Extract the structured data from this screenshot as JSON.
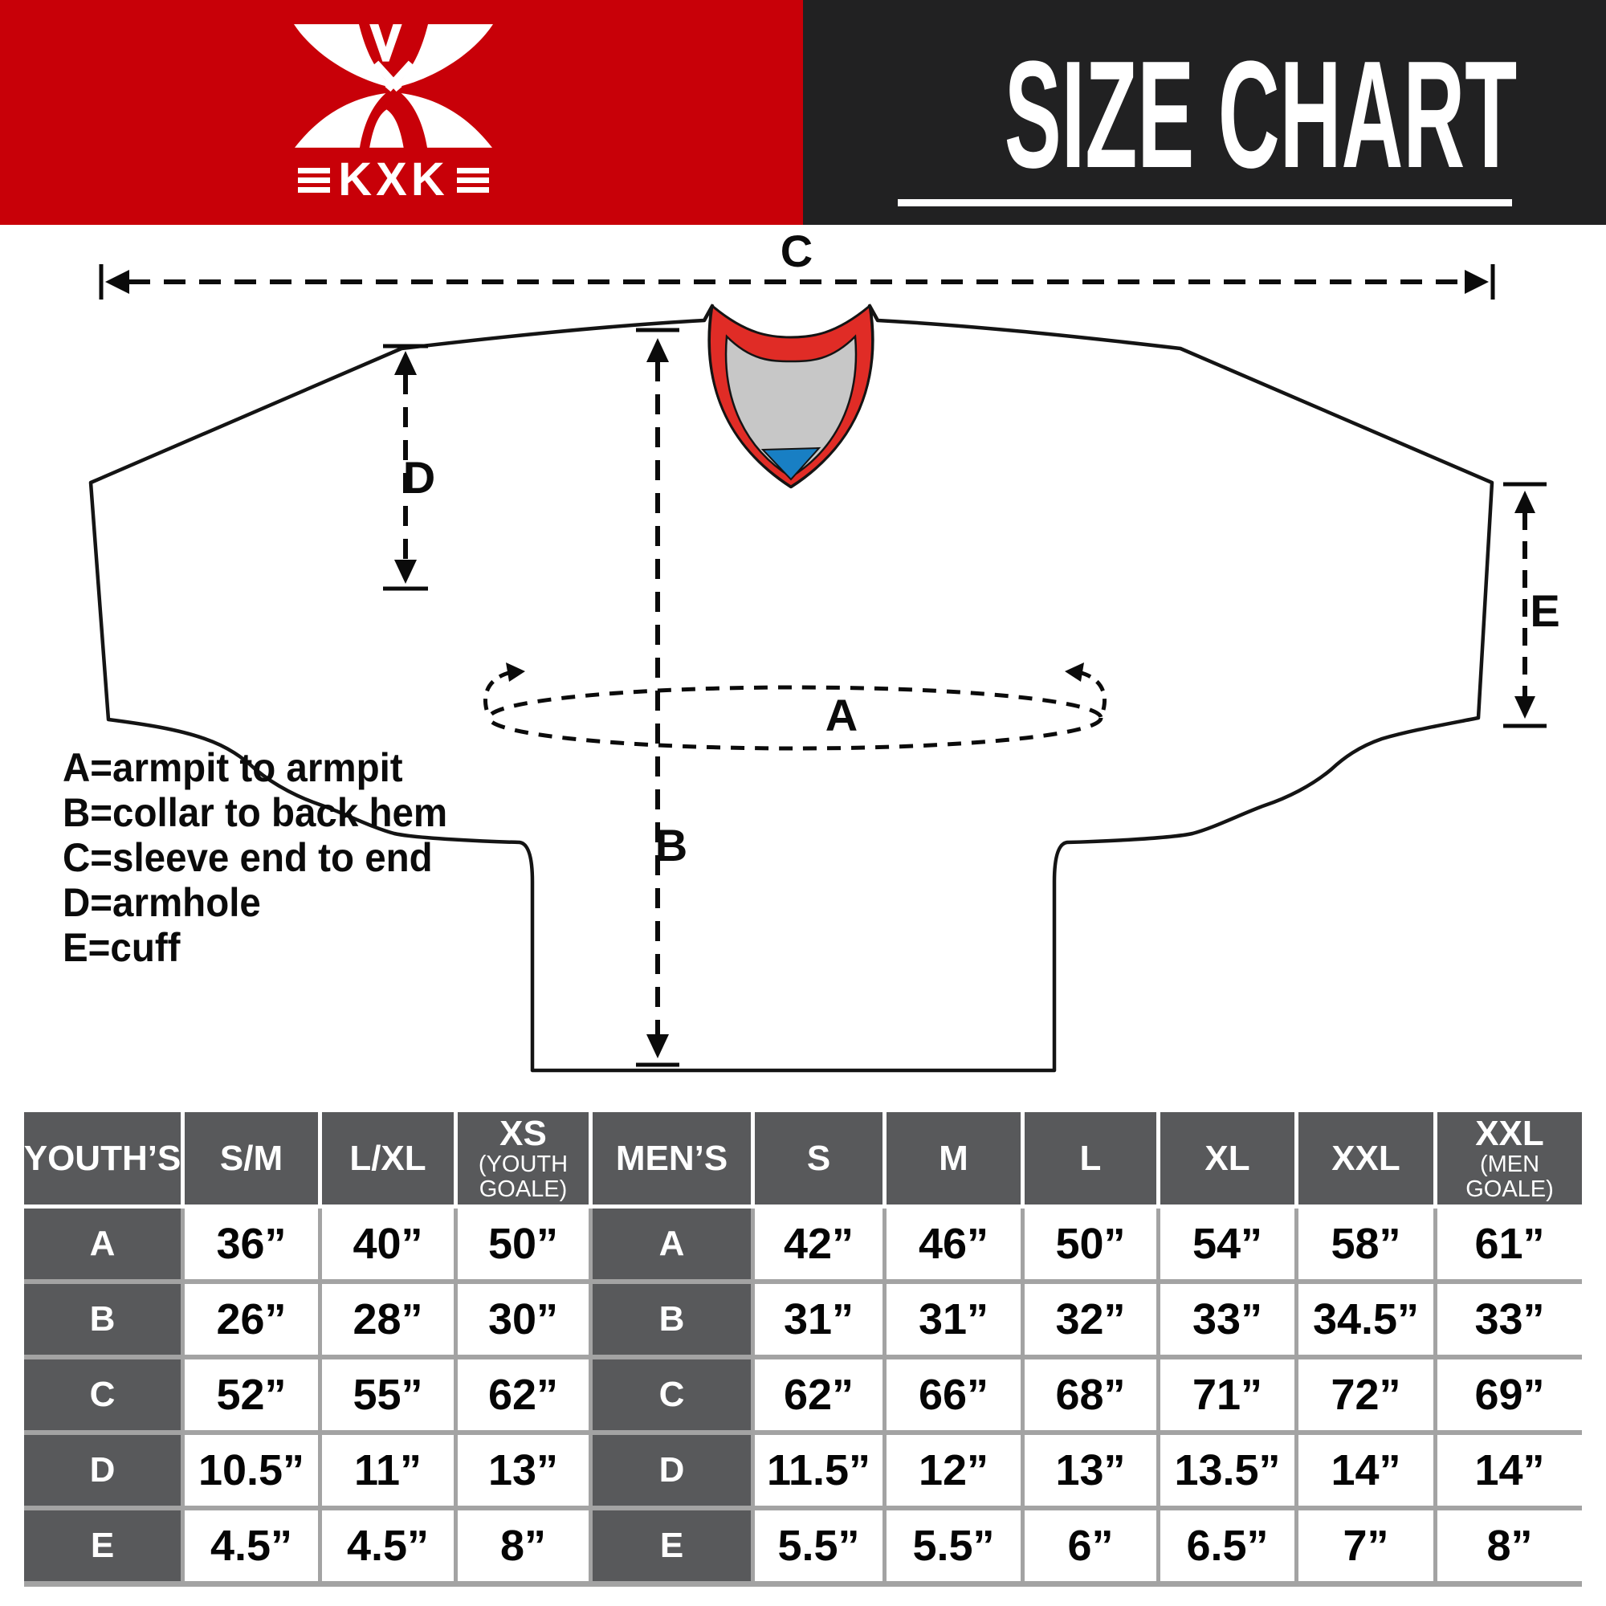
{
  "header": {
    "logo_text": "KXK",
    "title": "SIZE CHART",
    "colors": {
      "brand_red": "#c80008",
      "panel_dark": "#212122"
    }
  },
  "diagram": {
    "measure_labels": {
      "A": "A",
      "B": "B",
      "C": "C",
      "D": "D",
      "E": "E"
    },
    "legend": [
      "A=armpit to armpit",
      "B=collar to back hem",
      "C=sleeve end to end",
      "D=armhole",
      "E=cuff"
    ],
    "colors": {
      "collar_red": "#e02c26",
      "collar_gray": "#c7c7c7",
      "collar_blue": "#187fc4",
      "outline": "#141414"
    }
  },
  "size_table": {
    "columns": [
      {
        "label": "YOUTH’S",
        "sub": "",
        "type": "label"
      },
      {
        "label": "S/M",
        "sub": "",
        "type": "size"
      },
      {
        "label": "L/XL",
        "sub": "",
        "type": "size"
      },
      {
        "label": "XS",
        "sub": "(YOUTH GOALE)",
        "type": "size"
      },
      {
        "label": "MEN’S",
        "sub": "",
        "type": "label"
      },
      {
        "label": "S",
        "sub": "",
        "type": "size"
      },
      {
        "label": "M",
        "sub": "",
        "type": "size"
      },
      {
        "label": "L",
        "sub": "",
        "type": "size"
      },
      {
        "label": "XL",
        "sub": "",
        "type": "size"
      },
      {
        "label": "XXL",
        "sub": "",
        "type": "size"
      },
      {
        "label": "XXL",
        "sub": "(MEN GOALE)",
        "type": "size"
      }
    ],
    "rows": [
      [
        "A",
        "36”",
        "40”",
        "50”",
        "A",
        "42”",
        "46”",
        "50”",
        "54”",
        "58”",
        "61”"
      ],
      [
        "B",
        "26”",
        "28”",
        "30”",
        "B",
        "31”",
        "31”",
        "32”",
        "33”",
        "34.5”",
        "33”"
      ],
      [
        "C",
        "52”",
        "55”",
        "62”",
        "C",
        "62”",
        "66”",
        "68”",
        "71”",
        "72”",
        "69”"
      ],
      [
        "D",
        "10.5”",
        "11”",
        "13”",
        "D",
        "11.5”",
        "12”",
        "13”",
        "13.5”",
        "14”",
        "14”"
      ],
      [
        "E",
        "4.5”",
        "4.5”",
        "8”",
        "E",
        "5.5”",
        "5.5”",
        "6”",
        "6.5”",
        "7”",
        "8”"
      ]
    ]
  }
}
